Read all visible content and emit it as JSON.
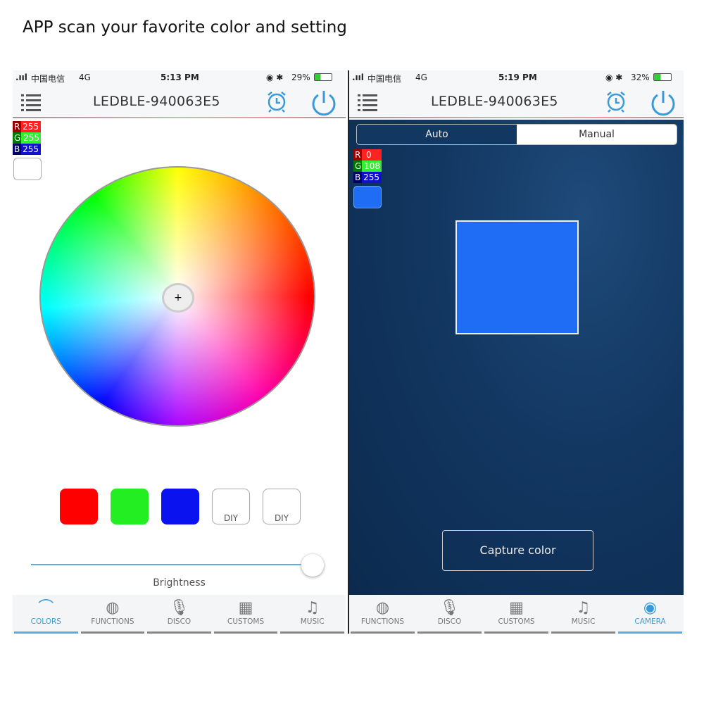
{
  "caption": "APP scan your favorite color and setting",
  "left": {
    "status": {
      "carrier": "中国电信",
      "network": "4G",
      "time": "5:13 PM",
      "battery": "29%"
    },
    "header": {
      "title": "LEDBLE-940063E5"
    },
    "rgb": {
      "r_label": "R",
      "r": "255",
      "g_label": "G",
      "g": "255",
      "b_label": "B",
      "b": "255"
    },
    "current_color": "#ffffff",
    "presets": [
      {
        "color": "#ff0000",
        "label": ""
      },
      {
        "color": "#22ee22",
        "label": ""
      },
      {
        "color": "#0a12f0",
        "label": ""
      },
      {
        "color": "#ffffff",
        "label": "DIY"
      },
      {
        "color": "#ffffff",
        "label": "DIY"
      }
    ],
    "brightness": {
      "label": "Brightness",
      "value_percent": 100
    },
    "tabs": [
      {
        "label": "COLORS",
        "icon": "rainbow-icon",
        "active": true
      },
      {
        "label": "FUNCTIONS",
        "icon": "striped-circle-icon"
      },
      {
        "label": "DISCO",
        "icon": "microphone-icon"
      },
      {
        "label": "CUSTOMS",
        "icon": "grid-icon"
      },
      {
        "label": "MUSIC",
        "icon": "music-note-icon"
      }
    ]
  },
  "right": {
    "status": {
      "carrier": "中国电信",
      "network": "4G",
      "time": "5:19 PM",
      "battery": "32%"
    },
    "header": {
      "title": "LEDBLE-940063E5"
    },
    "segment": {
      "auto": "Auto",
      "manual": "Manual",
      "selected": "Manual"
    },
    "rgb": {
      "r_label": "R",
      "r": "0",
      "g_label": "G",
      "g": "108",
      "b_label": "B",
      "b": "255"
    },
    "current_color": "#1f6cf5",
    "capture_label": "Capture color",
    "tabs": [
      {
        "label": "FUNCTIONS",
        "icon": "striped-circle-icon"
      },
      {
        "label": "DISCO",
        "icon": "microphone-icon"
      },
      {
        "label": "CUSTOMS",
        "icon": "grid-icon"
      },
      {
        "label": "MUSIC",
        "icon": "music-note-icon"
      },
      {
        "label": "CAMERA",
        "icon": "webcam-icon",
        "active": true
      }
    ]
  }
}
